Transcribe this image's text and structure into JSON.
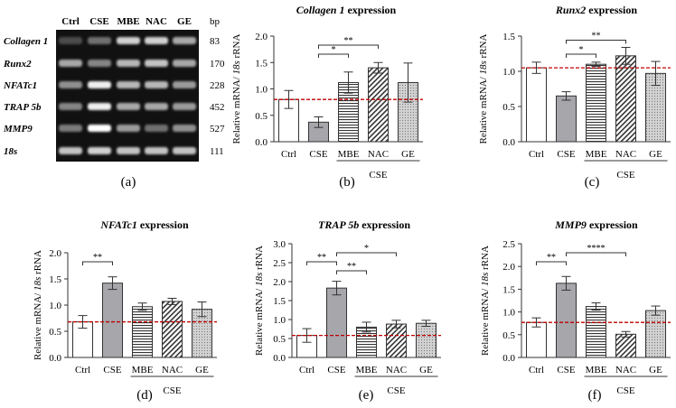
{
  "gel": {
    "lanes": [
      "Ctrl",
      "CSE",
      "MBE",
      "NAC",
      "GE"
    ],
    "bp_header": "bp",
    "rows": [
      {
        "gene": "Collagen 1",
        "bp": "83",
        "intensity": [
          0.25,
          0.45,
          0.85,
          0.85,
          0.7
        ]
      },
      {
        "gene": "Runx2",
        "bp": "170",
        "intensity": [
          0.7,
          0.55,
          0.75,
          0.8,
          0.7
        ]
      },
      {
        "gene": "NFATc1",
        "bp": "228",
        "intensity": [
          0.6,
          0.95,
          0.75,
          0.75,
          0.65
        ]
      },
      {
        "gene": "TRAP 5b",
        "bp": "452",
        "intensity": [
          0.55,
          0.95,
          0.7,
          0.7,
          0.65
        ]
      },
      {
        "gene": "MMP9",
        "bp": "527",
        "intensity": [
          0.5,
          1.0,
          0.65,
          0.45,
          0.6
        ]
      },
      {
        "gene": "18s",
        "bp": "111",
        "intensity": [
          0.8,
          0.85,
          0.8,
          0.8,
          0.8
        ]
      }
    ],
    "letter": "(a)"
  },
  "chart_data": [
    {
      "type": "bar",
      "panel": "b",
      "letter": "(b)",
      "title_gene": "Collagen 1",
      "title_suffix": " expression",
      "ylabel": "Relative mRNA/ 18s rRNA",
      "ylim": [
        0,
        2.0
      ],
      "yticks": [
        "0.0",
        "0.5",
        "1.0",
        "1.5",
        "2.0"
      ],
      "categories": [
        "Ctrl",
        "CSE",
        "MBE",
        "NAC",
        "GE"
      ],
      "values": [
        0.8,
        0.37,
        1.12,
        1.4,
        1.12
      ],
      "errors": [
        0.17,
        0.1,
        0.2,
        0.1,
        0.37
      ],
      "group_label": "CSE",
      "reference_line": 0.8,
      "significance": [
        {
          "from": 1,
          "to": 3,
          "label": "**"
        },
        {
          "from": 1,
          "to": 2,
          "label": "*"
        }
      ]
    },
    {
      "type": "bar",
      "panel": "c",
      "letter": "(c)",
      "title_gene": "Runx2",
      "title_suffix": " expression",
      "ylabel": "Relative mRNA/ 18s rRNA",
      "ylim": [
        0,
        1.5
      ],
      "yticks": [
        "0.0",
        "0.5",
        "1.0",
        "1.5"
      ],
      "categories": [
        "Ctrl",
        "CSE",
        "MBE",
        "NAC",
        "GE"
      ],
      "values": [
        1.05,
        0.65,
        1.1,
        1.22,
        0.97
      ],
      "errors": [
        0.08,
        0.06,
        0.03,
        0.12,
        0.17
      ],
      "group_label": "CSE",
      "reference_line": 1.05,
      "significance": [
        {
          "from": 1,
          "to": 3,
          "label": "**"
        },
        {
          "from": 1,
          "to": 2,
          "label": "*"
        }
      ]
    },
    {
      "type": "bar",
      "panel": "d",
      "letter": "(d)",
      "title_gene": "NFATc1",
      "title_suffix": " expression",
      "ylabel": "Relative mRNA/ 18s rRNA",
      "ylim": [
        0,
        2.0
      ],
      "yticks": [
        "0.0",
        "0.5",
        "1.0",
        "1.5",
        "2.0"
      ],
      "categories": [
        "Ctrl",
        "CSE",
        "MBE",
        "NAC",
        "GE"
      ],
      "values": [
        0.68,
        1.42,
        0.97,
        1.07,
        0.92
      ],
      "errors": [
        0.12,
        0.12,
        0.07,
        0.06,
        0.14
      ],
      "group_label": "CSE",
      "reference_line": 0.68,
      "significance": [
        {
          "from": 0,
          "to": 1,
          "label": "**"
        }
      ]
    },
    {
      "type": "bar",
      "panel": "e",
      "letter": "(e)",
      "title_gene": "TRAP 5b",
      "title_suffix": " expression",
      "ylabel": "Relative mRNA/ 18s rRNA",
      "ylim": [
        0,
        3.0
      ],
      "yticks": [
        "0.0",
        "0.5",
        "1.0",
        "1.5",
        "2.0",
        "2.5",
        "3.0"
      ],
      "categories": [
        "Ctrl",
        "CSE",
        "MBE",
        "NAC",
        "GE"
      ],
      "values": [
        0.58,
        1.83,
        0.8,
        0.88,
        0.9
      ],
      "errors": [
        0.18,
        0.18,
        0.13,
        0.1,
        0.08
      ],
      "group_label": "CSE",
      "reference_line": 0.58,
      "significance": [
        {
          "from": 0,
          "to": 1,
          "label": "**"
        },
        {
          "from": 1,
          "to": 3,
          "label": "*"
        },
        {
          "from": 1,
          "to": 2,
          "label": "**"
        }
      ]
    },
    {
      "type": "bar",
      "panel": "f",
      "letter": "(f)",
      "title_gene": "MMP9",
      "title_suffix": " expression",
      "ylabel": "Relative mRNA/ 18s rRNA",
      "ylim": [
        0,
        2.5
      ],
      "yticks": [
        "0.0",
        "0.5",
        "1.0",
        "1.5",
        "2.0",
        "2.5"
      ],
      "categories": [
        "Ctrl",
        "CSE",
        "MBE",
        "NAC",
        "GE"
      ],
      "values": [
        0.77,
        1.63,
        1.12,
        0.51,
        1.03
      ],
      "errors": [
        0.1,
        0.15,
        0.08,
        0.06,
        0.1
      ],
      "group_label": "CSE",
      "reference_line": 0.77,
      "significance": [
        {
          "from": 0,
          "to": 1,
          "label": "**"
        },
        {
          "from": 1,
          "to": 3,
          "label": "****"
        }
      ]
    }
  ],
  "colors": {
    "cse_bar": "#a6a6ab",
    "reference_line": "#c00000",
    "axis": "#333333",
    "gel_bg": "#111111",
    "gel_band": "#ffffff"
  },
  "bar_styles": [
    "white",
    "solid-gray",
    "horizontal-lines",
    "diagonal-lines",
    "dots"
  ]
}
